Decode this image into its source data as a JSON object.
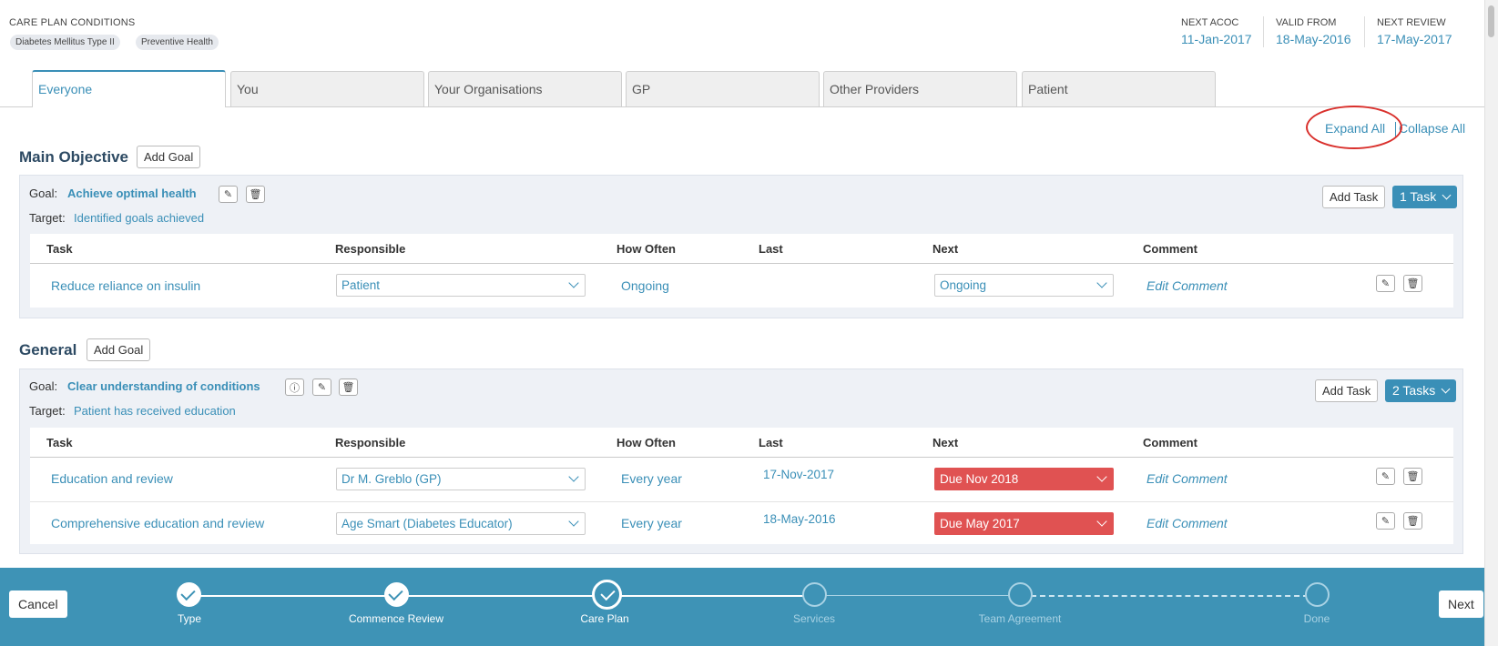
{
  "header": {
    "conditions_label": "CARE PLAN CONDITIONS",
    "conditions": [
      "Diabetes Mellitus Type II",
      "Preventive Health"
    ],
    "dates": [
      {
        "label": "NEXT ACOC",
        "value": "11-Jan-2017"
      },
      {
        "label": "VALID FROM",
        "value": "18-May-2016"
      },
      {
        "label": "NEXT REVIEW",
        "value": "17-May-2017"
      }
    ]
  },
  "tabs": [
    "Everyone",
    "You",
    "Your Organisations",
    "GP",
    "Other Providers",
    "Patient"
  ],
  "actions": {
    "expand_all": "Expand All",
    "collapse_all": "Collapse All"
  },
  "columns": {
    "task": "Task",
    "responsible": "Responsible",
    "how_often": "How Often",
    "last": "Last",
    "next": "Next",
    "comment": "Comment"
  },
  "sections": [
    {
      "title": "Main Objective",
      "add_goal": "Add Goal",
      "goal_label": "Goal:",
      "goal": "Achieve optimal health",
      "target_label": "Target:",
      "target": "Identified goals achieved",
      "add_task": "Add Task",
      "task_count": "1 Task",
      "tasks": [
        {
          "task": "Reduce reliance on insulin",
          "responsible": "Patient",
          "how_often": "Ongoing",
          "last": "",
          "next": "Ongoing",
          "comment": "Edit Comment"
        }
      ]
    },
    {
      "title": "General",
      "add_goal": "Add Goal",
      "goal_label": "Goal:",
      "goal": "Clear understanding of conditions",
      "target_label": "Target:",
      "target": "Patient has received education",
      "add_task": "Add Task",
      "task_count": "2 Tasks",
      "tasks": [
        {
          "task": "Education and review",
          "responsible": "Dr M. Greblo (GP)",
          "how_often": "Every year",
          "last": "17-Nov-2017",
          "next": "Due Nov 2018",
          "comment": "Edit Comment"
        },
        {
          "task": "Comprehensive education and review",
          "responsible": "Age Smart (Diabetes Educator)",
          "how_often": "Every year",
          "last": "18-May-2016",
          "next": "Due May 2017",
          "comment": "Edit Comment"
        }
      ]
    }
  ],
  "footer": {
    "cancel": "Cancel",
    "next": "Next",
    "steps": [
      "Type",
      "Commence Review",
      "Care Plan",
      "Services",
      "Team Agreement",
      "Done"
    ]
  },
  "colors": {
    "accent": "#3a8fb7",
    "due": "#e05252",
    "footer": "#3e93b6"
  }
}
